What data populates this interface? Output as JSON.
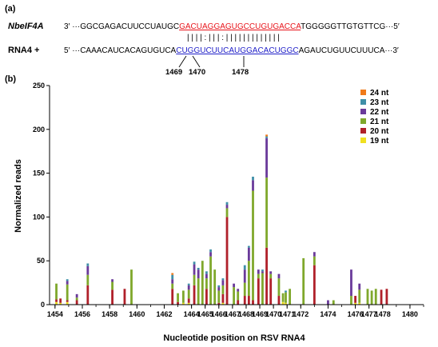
{
  "panel_a": {
    "label": "(a)",
    "top_name": "NbeIF4A",
    "top_prefix": "3′ ···GGCGAGACUUCCUAUGC",
    "top_highlight": "GACUAGGAGUGCCUGUGACCA",
    "top_suffix": "TGGGGGTTGTGTTCG···5′",
    "top_highlight_color": "#e8141b",
    "pairing": "| | | | : | | | : | | | | | | | | | | | | |",
    "bottom_name": "RNA4 +",
    "bottom_prefix": "5′ ···CAAACAUCACAGUGUCA",
    "bottom_highlight": "CUGGUCUUCAUGGACACUGGC",
    "bottom_suffix": "AGAUCUGUUCUUUCA···3′",
    "bottom_highlight_color": "#2020c8",
    "position_marks": [
      "1469",
      "1470",
      "1478"
    ]
  },
  "chart_data": {
    "panel_label": "(b)",
    "type": "bar",
    "stacked": true,
    "xlabel": "Nucleotide position on RSV RNA4",
    "ylabel": "Normalized reads",
    "ylim": [
      0,
      250
    ],
    "yticks": [
      0,
      50,
      100,
      150,
      200,
      250
    ],
    "xlim": [
      1453.6,
      1481
    ],
    "xticks": [
      1454,
      1456,
      1458,
      1460,
      1462,
      1464,
      1465,
      1466,
      1467,
      1468,
      1469,
      1470,
      1471,
      1472,
      1474,
      1476,
      1477,
      1478,
      1480
    ],
    "legend_position": "top-right",
    "grid": false,
    "series_order": [
      "19 nt",
      "20 nt",
      "21 nt",
      "22 nt",
      "23 nt",
      "24 nt"
    ],
    "legend_order": [
      "24 nt",
      "23 nt",
      "22 nt",
      "21 nt",
      "20 nt",
      "19 nt"
    ],
    "colors": {
      "24 nt": "#f07a1a",
      "23 nt": "#3f8fa8",
      "22 nt": "#6a3a9a",
      "21 nt": "#7fa82c",
      "20 nt": "#b0202a",
      "19 nt": "#f0e020"
    },
    "bars": [
      {
        "x": 1454.1,
        "v": [
          3,
          3,
          18,
          0,
          0,
          0
        ]
      },
      {
        "x": 1454.4,
        "v": [
          2,
          5,
          0,
          0,
          0,
          0
        ]
      },
      {
        "x": 1454.9,
        "v": [
          3,
          2,
          18,
          4,
          2,
          0
        ]
      },
      {
        "x": 1455.6,
        "v": [
          0,
          5,
          3,
          4,
          0,
          0
        ]
      },
      {
        "x": 1456.4,
        "v": [
          0,
          22,
          12,
          10,
          3,
          0
        ]
      },
      {
        "x": 1458.2,
        "v": [
          0,
          17,
          9,
          3,
          0,
          0
        ]
      },
      {
        "x": 1459.1,
        "v": [
          0,
          18,
          0,
          0,
          0,
          0
        ]
      },
      {
        "x": 1459.6,
        "v": [
          0,
          0,
          40,
          0,
          0,
          0
        ]
      },
      {
        "x": 1462.6,
        "v": [
          0,
          18,
          6,
          5,
          5,
          2
        ]
      },
      {
        "x": 1463.0,
        "v": [
          0,
          3,
          10,
          0,
          0,
          0
        ]
      },
      {
        "x": 1463.4,
        "v": [
          2,
          0,
          14,
          0,
          0,
          0
        ]
      },
      {
        "x": 1463.8,
        "v": [
          2,
          5,
          10,
          5,
          2,
          0
        ]
      },
      {
        "x": 1464.2,
        "v": [
          0,
          22,
          12,
          12,
          3,
          0
        ]
      },
      {
        "x": 1464.5,
        "v": [
          0,
          0,
          30,
          10,
          2,
          0
        ]
      },
      {
        "x": 1464.8,
        "v": [
          0,
          0,
          50,
          0,
          0,
          0
        ]
      },
      {
        "x": 1465.1,
        "v": [
          0,
          18,
          12,
          5,
          3,
          0
        ]
      },
      {
        "x": 1465.4,
        "v": [
          0,
          0,
          55,
          5,
          3,
          0
        ]
      },
      {
        "x": 1465.7,
        "v": [
          0,
          0,
          40,
          0,
          0,
          0
        ]
      },
      {
        "x": 1466.0,
        "v": [
          0,
          2,
          14,
          4,
          2,
          0
        ]
      },
      {
        "x": 1466.3,
        "v": [
          2,
          10,
          10,
          6,
          2,
          0
        ]
      },
      {
        "x": 1466.6,
        "v": [
          0,
          100,
          10,
          4,
          3,
          0
        ]
      },
      {
        "x": 1467.1,
        "v": [
          0,
          0,
          20,
          4,
          0,
          0
        ]
      },
      {
        "x": 1467.4,
        "v": [
          0,
          5,
          10,
          3,
          0,
          0
        ]
      },
      {
        "x": 1467.9,
        "v": [
          0,
          10,
          15,
          15,
          5,
          0
        ]
      },
      {
        "x": 1468.2,
        "v": [
          0,
          10,
          40,
          15,
          2,
          0
        ]
      },
      {
        "x": 1468.5,
        "v": [
          0,
          5,
          125,
          12,
          4,
          0
        ]
      },
      {
        "x": 1468.9,
        "v": [
          0,
          30,
          5,
          5,
          0,
          0
        ]
      },
      {
        "x": 1469.2,
        "v": [
          0,
          0,
          36,
          2,
          2,
          0
        ]
      },
      {
        "x": 1469.5,
        "v": [
          0,
          65,
          80,
          45,
          2,
          2
        ]
      },
      {
        "x": 1469.8,
        "v": [
          0,
          30,
          5,
          3,
          0,
          0
        ]
      },
      {
        "x": 1470.4,
        "v": [
          0,
          10,
          20,
          5,
          0,
          0
        ]
      },
      {
        "x": 1470.7,
        "v": [
          3,
          0,
          10,
          0,
          0,
          0
        ]
      },
      {
        "x": 1470.9,
        "v": [
          2,
          0,
          12,
          0,
          2,
          0
        ]
      },
      {
        "x": 1471.2,
        "v": [
          0,
          0,
          18,
          0,
          0,
          0
        ]
      },
      {
        "x": 1472.2,
        "v": [
          0,
          0,
          53,
          0,
          0,
          0
        ]
      },
      {
        "x": 1473.0,
        "v": [
          0,
          45,
          10,
          5,
          0,
          0
        ]
      },
      {
        "x": 1474.0,
        "v": [
          0,
          0,
          0,
          5,
          0,
          0
        ]
      },
      {
        "x": 1474.4,
        "v": [
          0,
          0,
          5,
          0,
          0,
          0
        ]
      },
      {
        "x": 1475.7,
        "v": [
          0,
          0,
          10,
          30,
          0,
          0
        ]
      },
      {
        "x": 1476.0,
        "v": [
          2,
          8,
          0,
          0,
          0,
          0
        ]
      },
      {
        "x": 1476.3,
        "v": [
          2,
          0,
          15,
          7,
          0,
          0
        ]
      },
      {
        "x": 1476.9,
        "v": [
          0,
          0,
          18,
          0,
          0,
          0
        ]
      },
      {
        "x": 1477.2,
        "v": [
          0,
          0,
          16,
          0,
          0,
          0
        ]
      },
      {
        "x": 1477.5,
        "v": [
          0,
          0,
          18,
          0,
          0,
          0
        ]
      },
      {
        "x": 1477.9,
        "v": [
          0,
          17,
          0,
          0,
          0,
          0
        ]
      },
      {
        "x": 1478.3,
        "v": [
          0,
          18,
          0,
          0,
          0,
          0
        ]
      }
    ]
  }
}
